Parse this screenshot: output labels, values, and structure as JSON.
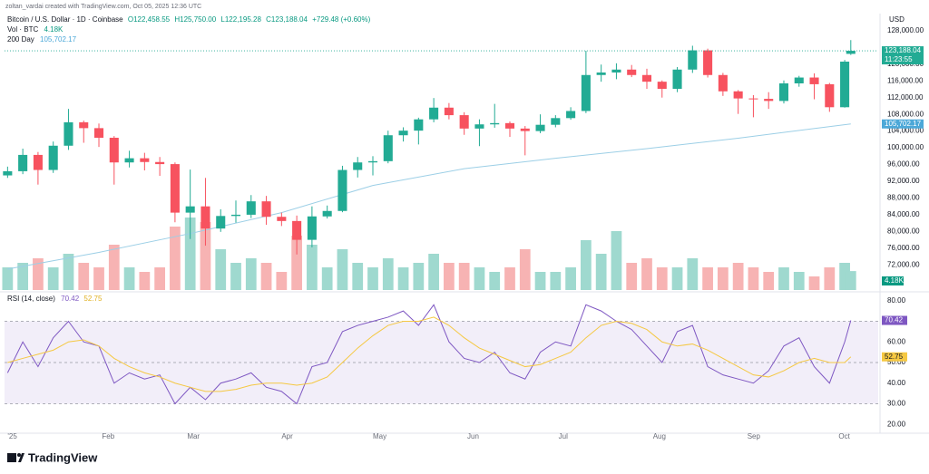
{
  "header": {
    "credit": "zoltan_vardai created with TradingView.com, Oct 05, 2025 12:36 UTC",
    "symbol": "Bitcoin / U.S. Dollar · 1D · Coinbase",
    "open": "O122,458.55",
    "high": "H125,750.00",
    "low": "L122,195.28",
    "close": "C123,188.04",
    "change": "+729.48 (+0.60%)",
    "vol_name": "Vol · BTC",
    "vol_value": "4.18K",
    "ma_name": "200 Day",
    "ma_value": "105,702.17",
    "rsi_name": "RSI (14, close)",
    "rsi_value": "70.42",
    "rsi_ma_value": "52.75",
    "currency": "USD",
    "brand": "TradingView"
  },
  "chart_data": {
    "type": "candlestick",
    "xlim": [
      -1,
      286
    ],
    "xticks": [
      {
        "value": 0,
        "label": "'25"
      },
      {
        "value": 31,
        "label": "Feb"
      },
      {
        "value": 59,
        "label": "Mar"
      },
      {
        "value": 90,
        "label": "Apr"
      },
      {
        "value": 120,
        "label": "May"
      },
      {
        "value": 151,
        "label": "Jun"
      },
      {
        "value": 181,
        "label": "Jul"
      },
      {
        "value": 212,
        "label": "Aug"
      },
      {
        "value": 243,
        "label": "Sep"
      },
      {
        "value": 273,
        "label": "Oct"
      }
    ],
    "ylim": [
      66000,
      131000
    ],
    "yticks": [
      {
        "value": 72000,
        "label": "72,000.00"
      },
      {
        "value": 76000,
        "label": "76,000.00"
      },
      {
        "value": 80000,
        "label": "80,000.00"
      },
      {
        "value": 84000,
        "label": "84,000.00"
      },
      {
        "value": 88000,
        "label": "88,000.00"
      },
      {
        "value": 92000,
        "label": "92,000.00"
      },
      {
        "value": 96000,
        "label": "96,000.00"
      },
      {
        "value": 100000,
        "label": "100,000.00"
      },
      {
        "value": 104000,
        "label": "104,000.00"
      },
      {
        "value": 108000,
        "label": "108,000.00"
      },
      {
        "value": 112000,
        "label": "112,000.00"
      },
      {
        "value": 116000,
        "label": "116,000.00"
      },
      {
        "value": 120000,
        "label": "120,000.00"
      },
      {
        "value": 128000,
        "label": "128,000.00"
      }
    ],
    "grid": false,
    "up_color": "#22ab94",
    "down_color": "#f7525f",
    "x": [
      0,
      5,
      10,
      15,
      20,
      25,
      30,
      35,
      40,
      45,
      50,
      55,
      60,
      65,
      70,
      75,
      80,
      85,
      90,
      95,
      100,
      105,
      110,
      115,
      120,
      125,
      130,
      135,
      140,
      145,
      150,
      155,
      160,
      165,
      170,
      175,
      180,
      185,
      190,
      195,
      200,
      205,
      210,
      215,
      220,
      225,
      230,
      235,
      240,
      245,
      250,
      255,
      260,
      265,
      270,
      275,
      277
    ],
    "open": [
      93400,
      94400,
      98300,
      94700,
      100500,
      106100,
      104700,
      102400,
      96500,
      97500,
      96600,
      96100,
      84500,
      86000,
      80700,
      83700,
      84000,
      87200,
      83500,
      82500,
      78000,
      83600,
      84900,
      94700,
      96500,
      96800,
      103000,
      104100,
      106800,
      109600,
      107800,
      104600,
      105600,
      105900,
      104600,
      104000,
      105500,
      107100,
      108800,
      117400,
      118000,
      118700,
      117400,
      115800,
      114100,
      118700,
      123300,
      117400,
      113500,
      111800,
      111700,
      111200,
      115400,
      116800,
      115200,
      109700,
      122458.55
    ],
    "high": [
      95500,
      99800,
      99000,
      101500,
      109300,
      106500,
      105800,
      102800,
      99300,
      98800,
      97800,
      96500,
      94800,
      92800,
      85300,
      87400,
      88700,
      88500,
      84500,
      83800,
      86000,
      86200,
      95700,
      97800,
      98000,
      104100,
      104900,
      107200,
      111900,
      110700,
      108500,
      106800,
      110500,
      106300,
      105200,
      108000,
      107800,
      109700,
      123200,
      119900,
      120200,
      119800,
      118900,
      116100,
      119300,
      124400,
      123700,
      117900,
      113800,
      112600,
      113300,
      116100,
      117200,
      117800,
      115500,
      121000,
      125750
    ],
    "low": [
      92800,
      93700,
      91200,
      94000,
      99500,
      101200,
      100200,
      91200,
      95300,
      94600,
      93300,
      82200,
      78200,
      76600,
      79900,
      82100,
      83200,
      81600,
      81300,
      74500,
      76200,
      83100,
      84600,
      92900,
      93400,
      96300,
      101500,
      100800,
      106100,
      106800,
      103100,
      100400,
      104800,
      102600,
      98200,
      103500,
      104900,
      106700,
      108300,
      115800,
      116400,
      116900,
      114100,
      112000,
      113300,
      117900,
      116800,
      112400,
      108100,
      107300,
      109300,
      110600,
      114600,
      111600,
      108600,
      109600,
      122195.28
    ],
    "close": [
      94400,
      98300,
      94700,
      100500,
      106100,
      104700,
      102400,
      96500,
      97500,
      96600,
      96100,
      84500,
      86000,
      80700,
      83700,
      84000,
      87200,
      83500,
      82500,
      78000,
      83600,
      84900,
      94700,
      96500,
      96800,
      103000,
      104100,
      106800,
      109600,
      107800,
      104600,
      105600,
      105900,
      104600,
      104000,
      105500,
      107100,
      108800,
      117400,
      118000,
      118700,
      117400,
      115800,
      114100,
      118700,
      123300,
      117400,
      113500,
      111800,
      111700,
      111200,
      115400,
      116800,
      115200,
      109700,
      120600,
      123188.04
    ],
    "last_price_label": "123,188.04",
    "countdown": "11:23:55",
    "volume": {
      "values": [
        5,
        6,
        7,
        5,
        8,
        6,
        5,
        10,
        5,
        4,
        5,
        14,
        16,
        15,
        9,
        6,
        7,
        6,
        4,
        12,
        10,
        5,
        9,
        6,
        5,
        7,
        5,
        6,
        8,
        6,
        6,
        5,
        4,
        5,
        9,
        4,
        4,
        5,
        11,
        8,
        13,
        6,
        7,
        5,
        5,
        7,
        5,
        5,
        6,
        5,
        4,
        5,
        4,
        3,
        5,
        6,
        4.18
      ],
      "up_color": "#9fd9cf",
      "down_color": "#f7b3b3",
      "last_label": "4.18K",
      "label_color": "#089981"
    },
    "ma200": {
      "x": [
        0,
        30,
        60,
        90,
        120,
        150,
        180,
        210,
        240,
        277
      ],
      "values": [
        71000,
        75000,
        79500,
        84500,
        91000,
        95000,
        97500,
        99800,
        102300,
        105702.17
      ],
      "color": "#9ccfe6",
      "label": "105,702.17",
      "label_color": "#4ca8d8"
    },
    "rsi": {
      "ylim": [
        16.6,
        83.4
      ],
      "yticks": [
        {
          "value": 80,
          "label": "80.00"
        },
        {
          "value": 60,
          "label": "60.00"
        },
        {
          "value": 50,
          "label": "50.00"
        },
        {
          "value": 40,
          "label": "40.00"
        },
        {
          "value": 30,
          "label": "30.00"
        },
        {
          "value": 20,
          "label": "20.00"
        }
      ],
      "levels": [
        70,
        50,
        30
      ],
      "series": [
        {
          "values": [
            45,
            60,
            48,
            62,
            70,
            60,
            58,
            40,
            45,
            42,
            44,
            30,
            38,
            32,
            40,
            42,
            45,
            38,
            36,
            30,
            48,
            50,
            65,
            68,
            70,
            72,
            75,
            68,
            78,
            60,
            52,
            50,
            55,
            45,
            42,
            55,
            60,
            58,
            78,
            75,
            70,
            66,
            58,
            50,
            65,
            68,
            48,
            44,
            42,
            40,
            46,
            58,
            62,
            48,
            40,
            60,
            70.42
          ],
          "color": "#7e57c2",
          "label": "70.42"
        },
        {
          "values": [
            50,
            52,
            54,
            56,
            60,
            61,
            58,
            52,
            48,
            45,
            43,
            40,
            38,
            36,
            36,
            37,
            39,
            40,
            40,
            39,
            40,
            43,
            50,
            57,
            63,
            68,
            70,
            70,
            72,
            68,
            62,
            57,
            54,
            51,
            48,
            49,
            52,
            55,
            62,
            68,
            70,
            69,
            66,
            60,
            58,
            59,
            56,
            52,
            48,
            44,
            43,
            46,
            50,
            52,
            50,
            50,
            52.75
          ],
          "color": "#f5c842",
          "label": "52.75"
        }
      ]
    }
  }
}
